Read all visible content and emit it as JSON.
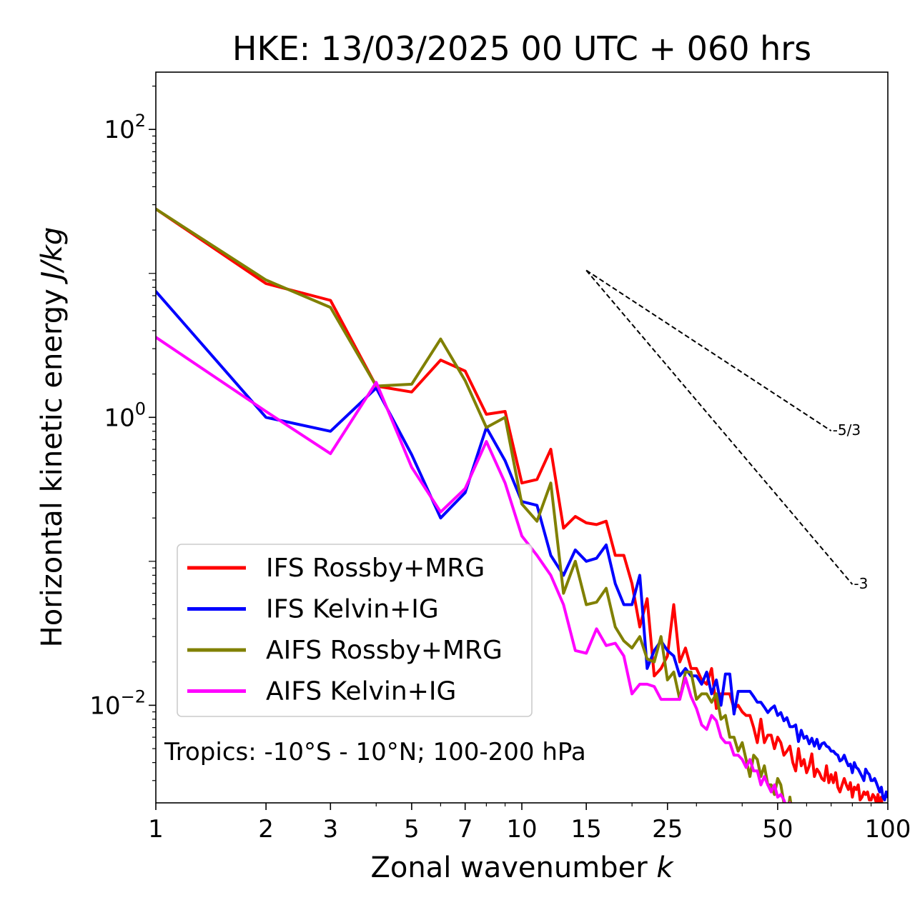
{
  "chart_data": {
    "type": "line",
    "title": "HKE: 13/03/2025 00 UTC + 060 hrs",
    "xlabel": "Zonal wavenumber",
    "xlabel_var": "k",
    "ylabel": "Horizontal kinetic energy",
    "ylabel_unit": "J/kg",
    "x_scale": "log",
    "y_scale": "log",
    "xlim": [
      1,
      100
    ],
    "ylim": [
      0.0021,
      250
    ],
    "x_ticks": [
      {
        "value": 1,
        "label": "1"
      },
      {
        "value": 2,
        "label": "2"
      },
      {
        "value": 3,
        "label": "3"
      },
      {
        "value": 5,
        "label": "5"
      },
      {
        "value": 7,
        "label": "7"
      },
      {
        "value": 10,
        "label": "10"
      },
      {
        "value": 15,
        "label": "15"
      },
      {
        "value": 25,
        "label": "25"
      },
      {
        "value": 50,
        "label": "50"
      },
      {
        "value": 100,
        "label": "100"
      }
    ],
    "y_ticks": [
      {
        "value": 100,
        "base": "10",
        "exp": "2"
      },
      {
        "value": 1,
        "base": "10",
        "exp": "0"
      },
      {
        "value": 0.01,
        "base": "10",
        "exp": "−2"
      }
    ],
    "legend_position": "lower-left",
    "annotation": "Tropics: -10°S - 10°N; 100-200 hPa",
    "reference_slopes": [
      {
        "label": "-5/3",
        "slope": -1.6667,
        "x": [
          15,
          70
        ],
        "y_start": 10.5
      },
      {
        "label": "-3",
        "slope": -3,
        "x": [
          15,
          80
        ],
        "y_start": 10.5
      }
    ],
    "series": [
      {
        "name": "IFS Rossby+MRG",
        "color": "#ff0000",
        "x": [
          1,
          2,
          3,
          4,
          5,
          6,
          7,
          8,
          9,
          10,
          11,
          12,
          13,
          14,
          15,
          16,
          17,
          18,
          19,
          20,
          21,
          22,
          23,
          24,
          25,
          26,
          27,
          28,
          29,
          30,
          31,
          32,
          33,
          34,
          35,
          36,
          37,
          38,
          39,
          40,
          41,
          42,
          43,
          44,
          45,
          46,
          47,
          48,
          49,
          50,
          51,
          52,
          53,
          54,
          55,
          56,
          57,
          58,
          59,
          60,
          61,
          62,
          63,
          64,
          65,
          66,
          67,
          68,
          69,
          70,
          71,
          72,
          73,
          74,
          75,
          76,
          77,
          78,
          79,
          80,
          81,
          82,
          83,
          84,
          85,
          86,
          87,
          88,
          89,
          90,
          91,
          92,
          93,
          94,
          95,
          96,
          97,
          98,
          99,
          100
        ],
        "y": [
          28,
          8.5,
          6.5,
          1.65,
          1.5,
          2.5,
          2.1,
          1.05,
          1.1,
          0.35,
          0.37,
          0.6,
          0.17,
          0.205,
          0.185,
          0.18,
          0.19,
          0.11,
          0.11,
          0.07,
          0.035,
          0.055,
          0.016,
          0.018,
          0.022,
          0.05,
          0.02,
          0.025,
          0.018,
          0.018,
          0.015,
          0.014,
          0.018,
          0.0095,
          0.012,
          0.012,
          0.012,
          0.0095,
          0.01,
          0.009,
          0.0085,
          0.0085,
          0.007,
          0.0055,
          0.008,
          0.0055,
          0.0062,
          0.0062,
          0.005,
          0.006,
          0.0055,
          0.0045,
          0.0048,
          0.0052,
          0.004,
          0.0035,
          0.005,
          0.0038,
          0.0042,
          0.0034,
          0.0038,
          0.0046,
          0.0032,
          0.0036,
          0.0034,
          0.0031,
          0.003,
          0.0038,
          0.0029,
          0.0033,
          0.0029,
          0.0034,
          0.0027,
          0.0025,
          0.0028,
          0.0031,
          0.0028,
          0.0026,
          0.0029,
          0.0023,
          0.0027,
          0.0026,
          0.0028,
          0.0022,
          0.0023,
          0.0025,
          0.0024,
          0.0025,
          0.0022,
          0.0022,
          0.0024,
          0.0023,
          0.0021,
          0.0024,
          0.002,
          0.0023,
          0.0017,
          0.0018,
          0.0017,
          0.0013
        ]
      },
      {
        "name": "IFS Kelvin+IG",
        "color": "#0000ff",
        "x": [
          1,
          2,
          3,
          4,
          5,
          6,
          7,
          8,
          9,
          10,
          11,
          12,
          13,
          14,
          15,
          16,
          17,
          18,
          19,
          20,
          21,
          22,
          23,
          24,
          25,
          26,
          27,
          28,
          29,
          30,
          31,
          32,
          33,
          34,
          35,
          36,
          37,
          38,
          39,
          40,
          41,
          42,
          43,
          44,
          45,
          46,
          47,
          48,
          49,
          50,
          51,
          52,
          53,
          54,
          55,
          56,
          57,
          58,
          59,
          60,
          61,
          62,
          63,
          64,
          65,
          66,
          67,
          68,
          69,
          70,
          71,
          72,
          73,
          74,
          75,
          76,
          77,
          78,
          79,
          80,
          81,
          82,
          83,
          84,
          85,
          86,
          87,
          88,
          89,
          90,
          91,
          92,
          93,
          94,
          95,
          96,
          97,
          98,
          99,
          100
        ],
        "y": [
          7.5,
          1.0,
          0.8,
          1.6,
          0.55,
          0.2,
          0.3,
          0.85,
          0.5,
          0.26,
          0.245,
          0.11,
          0.08,
          0.12,
          0.1,
          0.105,
          0.13,
          0.07,
          0.05,
          0.05,
          0.08,
          0.018,
          0.024,
          0.028,
          0.024,
          0.022,
          0.016,
          0.018,
          0.016,
          0.016,
          0.014,
          0.017,
          0.012,
          0.015,
          0.01,
          0.0165,
          0.0165,
          0.0087,
          0.0125,
          0.0125,
          0.0125,
          0.0125,
          0.0115,
          0.0105,
          0.0105,
          0.0097,
          0.0089,
          0.0095,
          0.0099,
          0.0085,
          0.0089,
          0.0078,
          0.0082,
          0.0071,
          0.0071,
          0.0073,
          0.0056,
          0.0067,
          0.0059,
          0.0061,
          0.0054,
          0.0059,
          0.0052,
          0.0058,
          0.005,
          0.0054,
          0.0055,
          0.0052,
          0.0051,
          0.0048,
          0.0048,
          0.0046,
          0.0045,
          0.0041,
          0.0042,
          0.0045,
          0.0041,
          0.0038,
          0.0039,
          0.0034,
          0.004,
          0.0037,
          0.0036,
          0.0034,
          0.0032,
          0.003,
          0.0036,
          0.0034,
          0.0033,
          0.003,
          0.003,
          0.0031,
          0.0029,
          0.0027,
          0.0025,
          0.0027,
          0.0023,
          0.0022,
          0.0025,
          0.0023
        ]
      },
      {
        "name": "AIFS Rossby+MRG",
        "color": "#808000",
        "x": [
          1,
          2,
          3,
          4,
          5,
          6,
          7,
          8,
          9,
          10,
          11,
          12,
          13,
          14,
          15,
          16,
          17,
          18,
          19,
          20,
          21,
          22,
          23,
          24,
          25,
          26,
          27,
          28,
          29,
          30,
          31,
          32,
          33,
          34,
          35,
          36,
          37,
          38,
          39,
          40,
          41,
          42,
          43,
          44,
          45,
          46,
          47,
          48,
          49,
          50,
          51,
          52,
          53,
          54,
          55
        ],
        "y": [
          28,
          9,
          5.8,
          1.65,
          1.7,
          3.5,
          1.8,
          0.85,
          1.0,
          0.25,
          0.19,
          0.35,
          0.06,
          0.1,
          0.05,
          0.052,
          0.065,
          0.035,
          0.028,
          0.025,
          0.03,
          0.021,
          0.02,
          0.03,
          0.015,
          0.017,
          0.011,
          0.017,
          0.017,
          0.011,
          0.012,
          0.012,
          0.0105,
          0.012,
          0.008,
          0.0085,
          0.006,
          0.006,
          0.0048,
          0.0055,
          0.0042,
          0.0032,
          0.0045,
          0.0042,
          0.0032,
          0.0038,
          0.0028,
          0.0028,
          0.0024,
          0.0031,
          0.0028,
          0.0021,
          0.0016,
          0.0023,
          0.0017
        ]
      },
      {
        "name": "AIFS Kelvin+IG",
        "color": "#ff00ff",
        "x": [
          1,
          2,
          3,
          4,
          5,
          6,
          7,
          8,
          9,
          10,
          11,
          12,
          13,
          14,
          15,
          16,
          17,
          18,
          19,
          20,
          21,
          22,
          23,
          24,
          25,
          26,
          27,
          28,
          29,
          30,
          31,
          32,
          33,
          34,
          35,
          36,
          37,
          38,
          39,
          40,
          41,
          42,
          43,
          44,
          45,
          46,
          47,
          48,
          49,
          50,
          51,
          52,
          53,
          54,
          55,
          56,
          57,
          58,
          59,
          60
        ],
        "y": [
          3.6,
          1.1,
          0.56,
          1.75,
          0.45,
          0.22,
          0.32,
          0.68,
          0.35,
          0.15,
          0.11,
          0.08,
          0.05,
          0.024,
          0.023,
          0.034,
          0.026,
          0.027,
          0.022,
          0.012,
          0.014,
          0.014,
          0.0135,
          0.011,
          0.011,
          0.011,
          0.011,
          0.0155,
          0.0115,
          0.0095,
          0.0073,
          0.0068,
          0.0085,
          0.0078,
          0.006,
          0.0055,
          0.0055,
          0.0045,
          0.0045,
          0.0042,
          0.0037,
          0.0042,
          0.0035,
          0.0035,
          0.0028,
          0.0032,
          0.0028,
          0.0025,
          0.0028,
          0.0023,
          0.0024,
          0.0022,
          0.0019,
          0.0021,
          0.0019,
          0.0018,
          0.0016,
          0.0018,
          0.0017,
          0.0015
        ]
      }
    ]
  }
}
